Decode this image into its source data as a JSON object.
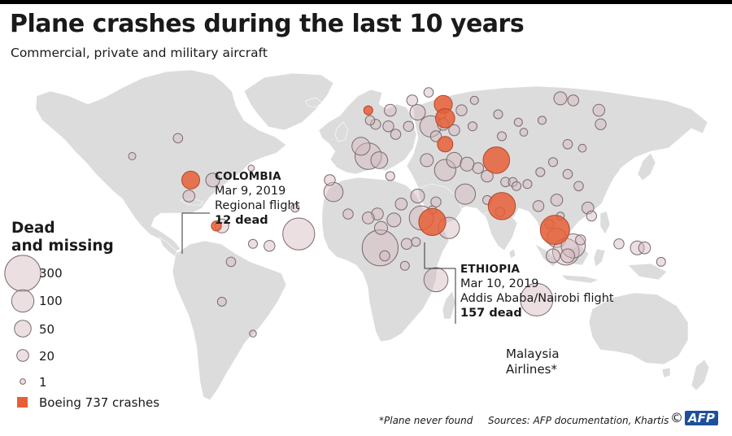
{
  "title": "Plane crashes during the last 10 years",
  "subtitle": "Commercial, private and military aircraft",
  "legend": {
    "title_line1": "Dead",
    "title_line2": "and missing",
    "size_steps": [
      {
        "label": "300",
        "value": 300
      },
      {
        "label": "100",
        "value": 100
      },
      {
        "label": "50",
        "value": 50
      },
      {
        "label": "20",
        "value": 20
      },
      {
        "label": "1",
        "value": 1
      }
    ],
    "boeing_label": "Boeing 737 crashes"
  },
  "colors": {
    "land": "#dcdcdc",
    "crash": "#d2b9be",
    "boeing": "#e65f37",
    "afp_blue": "#1f4f9c"
  },
  "annotations": {
    "colombia": {
      "country": "COLOMBIA",
      "date": "Mar 9, 2019",
      "flight": "Regional flight",
      "dead": "12 dead"
    },
    "ethiopia": {
      "country": "ETHIOPIA",
      "date": "Mar 10, 2019",
      "flight": "Addis Ababa/Nairobi flight",
      "dead": "157 dead"
    },
    "malaysia": {
      "line1": "Malaysia",
      "line2": "Airlines*"
    }
  },
  "footnote": "*Plane never found",
  "sources": "Sources: AFP documentation, Khartis",
  "credit": {
    "symbol": "©",
    "logo": "AFP"
  },
  "crashes": [
    {
      "lon": 9.5,
      "lat": -6,
      "dead": 300
    },
    {
      "lon": 32,
      "lat": 9,
      "dead": 120
    },
    {
      "lon": 47,
      "lat": 4,
      "dead": 90
    },
    {
      "lon": -16,
      "lat": 22,
      "dead": 70
    },
    {
      "lon": -35,
      "lat": 1,
      "dead": 228
    },
    {
      "lon": 3,
      "lat": 40,
      "dead": 150
    },
    {
      "lon": -126,
      "lat": 40,
      "dead": 4
    },
    {
      "lon": -101,
      "lat": 49,
      "dead": 10
    },
    {
      "lon": -82,
      "lat": 28,
      "dead": 30
    },
    {
      "lon": -95,
      "lat": 20,
      "dead": 20
    },
    {
      "lon": -77,
      "lat": 5,
      "dead": 30
    },
    {
      "lon": -72,
      "lat": -13,
      "dead": 10
    },
    {
      "lon": -60,
      "lat": -4,
      "dead": 8
    },
    {
      "lon": -51,
      "lat": -5,
      "dead": 15
    },
    {
      "lon": -77,
      "lat": -33,
      "dead": 8
    },
    {
      "lon": -60,
      "lat": -49,
      "dead": 3
    },
    {
      "lon": -61,
      "lat": 34,
      "dead": 2
    },
    {
      "lon": -37,
      "lat": 14,
      "dead": 6
    },
    {
      "lon": -18,
      "lat": 28,
      "dead": 15
    },
    {
      "lon": -1,
      "lat": 45,
      "dead": 60
    },
    {
      "lon": 9,
      "lat": 38,
      "dead": 50
    },
    {
      "lon": 7,
      "lat": 56,
      "dead": 12
    },
    {
      "lon": 4,
      "lat": 58,
      "dead": 10
    },
    {
      "lon": 14,
      "lat": 55,
      "dead": 15
    },
    {
      "lon": 15,
      "lat": 63,
      "dead": 20
    },
    {
      "lon": 18,
      "lat": 51,
      "dead": 12
    },
    {
      "lon": 25,
      "lat": 55,
      "dead": 12
    },
    {
      "lon": 30,
      "lat": 62,
      "dead": 40
    },
    {
      "lon": 27,
      "lat": 68,
      "dead": 15
    },
    {
      "lon": 36,
      "lat": 72,
      "dead": 10
    },
    {
      "lon": 43,
      "lat": 61,
      "dead": 8
    },
    {
      "lon": 54,
      "lat": 63,
      "dead": 15
    },
    {
      "lon": 61,
      "lat": 68,
      "dead": 6
    },
    {
      "lon": 74,
      "lat": 61,
      "dead": 8
    },
    {
      "lon": 85,
      "lat": 57,
      "dead": 6
    },
    {
      "lon": 98,
      "lat": 58,
      "dead": 6
    },
    {
      "lon": 108,
      "lat": 69,
      "dead": 25
    },
    {
      "lon": 115,
      "lat": 68,
      "dead": 15
    },
    {
      "lon": 129,
      "lat": 63,
      "dead": 20
    },
    {
      "lon": 130,
      "lat": 56,
      "dead": 15
    },
    {
      "lon": 37,
      "lat": 55,
      "dead": 90
    },
    {
      "lon": 40,
      "lat": 50,
      "dead": 15
    },
    {
      "lon": 44,
      "lat": 56,
      "dead": 20
    },
    {
      "lon": 50,
      "lat": 53,
      "dead": 15
    },
    {
      "lon": 60,
      "lat": 55,
      "dead": 8
    },
    {
      "lon": 76,
      "lat": 50,
      "dead": 8
    },
    {
      "lon": 88,
      "lat": 52,
      "dead": 5
    },
    {
      "lon": 35,
      "lat": 38,
      "dead": 25
    },
    {
      "lon": 45,
      "lat": 33,
      "dead": 90
    },
    {
      "lon": 50,
      "lat": 38,
      "dead": 40
    },
    {
      "lon": 57,
      "lat": 36,
      "dead": 30
    },
    {
      "lon": 63,
      "lat": 34,
      "dead": 15
    },
    {
      "lon": 68,
      "lat": 30,
      "dead": 20
    },
    {
      "lon": 78,
      "lat": 27,
      "dead": 10
    },
    {
      "lon": 82,
      "lat": 27,
      "dead": 8
    },
    {
      "lon": 84,
      "lat": 25,
      "dead": 8
    },
    {
      "lon": 90,
      "lat": 26,
      "dead": 8
    },
    {
      "lon": 97,
      "lat": 32,
      "dead": 8
    },
    {
      "lon": 104,
      "lat": 37,
      "dead": 8
    },
    {
      "lon": 112,
      "lat": 31,
      "dead": 10
    },
    {
      "lon": 118,
      "lat": 25,
      "dead": 10
    },
    {
      "lon": 112,
      "lat": 46,
      "dead": 10
    },
    {
      "lon": 120,
      "lat": 44,
      "dead": 5
    },
    {
      "lon": 56,
      "lat": 21,
      "dead": 80
    },
    {
      "lon": 30,
      "lat": 20,
      "dead": 30
    },
    {
      "lon": 40,
      "lat": 17,
      "dead": 12
    },
    {
      "lon": 15,
      "lat": 30,
      "dead": 8
    },
    {
      "lon": 21,
      "lat": 16,
      "dead": 20
    },
    {
      "lon": 8,
      "lat": 11,
      "dead": 20
    },
    {
      "lon": -8,
      "lat": 11,
      "dead": 12
    },
    {
      "lon": 3,
      "lat": 9,
      "dead": 20
    },
    {
      "lon": 10,
      "lat": 4,
      "dead": 25
    },
    {
      "lon": 17,
      "lat": 8,
      "dead": 30
    },
    {
      "lon": 24,
      "lat": -4,
      "dead": 15
    },
    {
      "lon": 12,
      "lat": -10,
      "dead": 12
    },
    {
      "lon": 29,
      "lat": -3,
      "dead": 8
    },
    {
      "lon": 23,
      "lat": -15,
      "dead": 8
    },
    {
      "lon": 40,
      "lat": -22,
      "dead": 120
    },
    {
      "lon": 38,
      "lat": 13,
      "dead": 6
    },
    {
      "lon": 68,
      "lat": 18,
      "dead": 8
    },
    {
      "lon": 75,
      "lat": 12,
      "dead": 10
    },
    {
      "lon": 102,
      "lat": 6,
      "dead": 8
    },
    {
      "lon": 96,
      "lat": 15,
      "dead": 15
    },
    {
      "lon": 106,
      "lat": 18,
      "dead": 20
    },
    {
      "lon": 108,
      "lat": 10,
      "dead": 5
    },
    {
      "lon": 106,
      "lat": -1,
      "dead": 70
    },
    {
      "lon": 111,
      "lat": -8,
      "dead": 150
    },
    {
      "lon": 115,
      "lat": -5,
      "dead": 120
    },
    {
      "lon": 104,
      "lat": -10,
      "dead": 30
    },
    {
      "lon": 112,
      "lat": -10,
      "dead": 30
    },
    {
      "lon": 119,
      "lat": -2,
      "dead": 12
    },
    {
      "lon": 123,
      "lat": 14,
      "dead": 20
    },
    {
      "lon": 125,
      "lat": 10,
      "dead": 12
    },
    {
      "lon": 140,
      "lat": -4,
      "dead": 12
    },
    {
      "lon": 150,
      "lat": -6,
      "dead": 30
    },
    {
      "lon": 154,
      "lat": -6,
      "dead": 20
    },
    {
      "lon": 163,
      "lat": -13,
      "dead": 8
    },
    {
      "lon": 95,
      "lat": -32,
      "dead": 239
    }
  ],
  "boeing_crashes": [
    {
      "lon": -94,
      "lat": 28,
      "dead": 58
    },
    {
      "lon": -80,
      "lat": 5,
      "dead": 12
    },
    {
      "lon": 38,
      "lat": 7,
      "dead": 157
    },
    {
      "lon": 44,
      "lat": 66,
      "dead": 60
    },
    {
      "lon": 45,
      "lat": 59,
      "dead": 70
    },
    {
      "lon": 45,
      "lat": 46,
      "dead": 40
    },
    {
      "lon": 73,
      "lat": 38,
      "dead": 150
    },
    {
      "lon": 76,
      "lat": 15,
      "dead": 158
    },
    {
      "lon": 105,
      "lat": 3,
      "dead": 189
    },
    {
      "lon": 3,
      "lat": 63,
      "dead": 8
    }
  ]
}
